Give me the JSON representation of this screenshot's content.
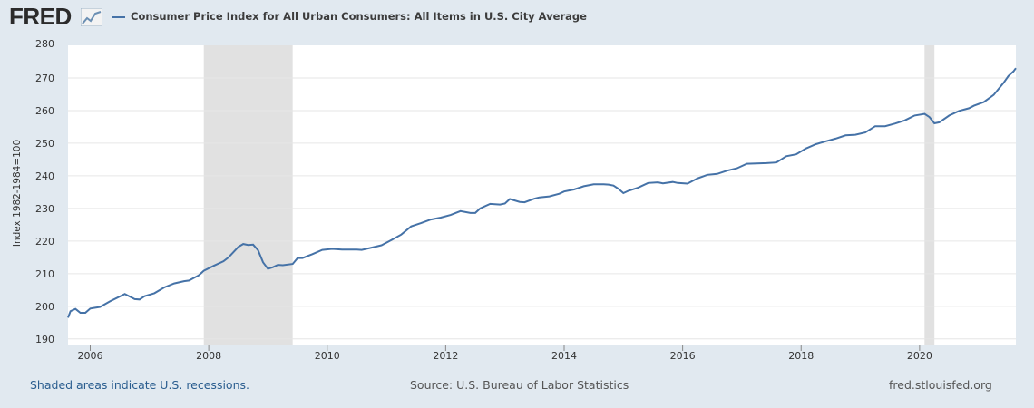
{
  "header": {
    "logo_text": "FRED",
    "series_label": "Consumer Price Index for All Urban Consumers: All Items in U.S. City Average"
  },
  "footer": {
    "recession_note": "Shaded areas indicate U.S. recessions.",
    "source": "Source: U.S. Bureau of Labor Statistics",
    "site": "fred.stlouisfed.org"
  },
  "colors": {
    "background": "#e1e9f0",
    "plot_bg": "#ffffff",
    "line": "#4572a7",
    "recession": "#e1e1e1",
    "grid": "#e6e6e6"
  },
  "chart_data": {
    "type": "line",
    "title": "Consumer Price Index for All Urban Consumers: All Items in U.S. City Average",
    "xlabel": "",
    "ylabel": "Index 1982-1984=100",
    "xlim": [
      2005.625,
      2021.625
    ],
    "ylim": [
      188,
      280
    ],
    "y_ticks": [
      190,
      200,
      210,
      220,
      230,
      240,
      250,
      260,
      270,
      280
    ],
    "x_ticks": [
      2006,
      2008,
      2010,
      2012,
      2014,
      2016,
      2018,
      2020
    ],
    "grid": true,
    "recessions": [
      [
        2007.917,
        2009.417
      ],
      [
        2020.083,
        2020.25
      ]
    ],
    "series": [
      {
        "name": "CPIAUCSL",
        "points": [
          [
            2005.625,
            196.5
          ],
          [
            2005.667,
            198.5
          ],
          [
            2005.75,
            199.2
          ],
          [
            2005.833,
            198.0
          ],
          [
            2005.917,
            198.0
          ],
          [
            2006.0,
            199.3
          ],
          [
            2006.167,
            199.8
          ],
          [
            2006.333,
            201.5
          ],
          [
            2006.5,
            203.0
          ],
          [
            2006.583,
            203.8
          ],
          [
            2006.75,
            202.2
          ],
          [
            2006.833,
            202.1
          ],
          [
            2006.917,
            203.1
          ],
          [
            2007.083,
            204.0
          ],
          [
            2007.25,
            205.8
          ],
          [
            2007.417,
            207.0
          ],
          [
            2007.583,
            207.7
          ],
          [
            2007.667,
            207.9
          ],
          [
            2007.833,
            209.5
          ],
          [
            2007.917,
            210.9
          ],
          [
            2008.083,
            212.4
          ],
          [
            2008.25,
            213.8
          ],
          [
            2008.333,
            215.0
          ],
          [
            2008.5,
            218.2
          ],
          [
            2008.583,
            219.1
          ],
          [
            2008.667,
            218.8
          ],
          [
            2008.75,
            218.9
          ],
          [
            2008.833,
            217.2
          ],
          [
            2008.917,
            213.5
          ],
          [
            2009.0,
            211.5
          ],
          [
            2009.083,
            212.0
          ],
          [
            2009.167,
            212.7
          ],
          [
            2009.25,
            212.6
          ],
          [
            2009.417,
            213.0
          ],
          [
            2009.5,
            214.8
          ],
          [
            2009.583,
            214.8
          ],
          [
            2009.75,
            216.0
          ],
          [
            2009.917,
            217.3
          ],
          [
            2010.083,
            217.6
          ],
          [
            2010.25,
            217.4
          ],
          [
            2010.5,
            217.4
          ],
          [
            2010.583,
            217.3
          ],
          [
            2010.75,
            218.0
          ],
          [
            2010.917,
            218.7
          ],
          [
            2011.083,
            220.3
          ],
          [
            2011.25,
            222.0
          ],
          [
            2011.417,
            224.5
          ],
          [
            2011.583,
            225.5
          ],
          [
            2011.75,
            226.6
          ],
          [
            2011.917,
            227.2
          ],
          [
            2012.083,
            228.0
          ],
          [
            2012.25,
            229.2
          ],
          [
            2012.417,
            228.6
          ],
          [
            2012.5,
            228.6
          ],
          [
            2012.583,
            230.0
          ],
          [
            2012.75,
            231.4
          ],
          [
            2012.917,
            231.2
          ],
          [
            2013.0,
            231.5
          ],
          [
            2013.083,
            232.9
          ],
          [
            2013.25,
            232.0
          ],
          [
            2013.333,
            231.9
          ],
          [
            2013.5,
            233.0
          ],
          [
            2013.583,
            233.4
          ],
          [
            2013.75,
            233.7
          ],
          [
            2013.917,
            234.5
          ],
          [
            2014.0,
            235.2
          ],
          [
            2014.167,
            235.8
          ],
          [
            2014.333,
            236.8
          ],
          [
            2014.5,
            237.4
          ],
          [
            2014.667,
            237.4
          ],
          [
            2014.75,
            237.3
          ],
          [
            2014.833,
            237.0
          ],
          [
            2014.917,
            236.0
          ],
          [
            2015.0,
            234.7
          ],
          [
            2015.083,
            235.4
          ],
          [
            2015.25,
            236.4
          ],
          [
            2015.417,
            237.8
          ],
          [
            2015.583,
            238.0
          ],
          [
            2015.667,
            237.7
          ],
          [
            2015.833,
            238.1
          ],
          [
            2015.917,
            237.8
          ],
          [
            2016.083,
            237.6
          ],
          [
            2016.25,
            239.2
          ],
          [
            2016.417,
            240.3
          ],
          [
            2016.583,
            240.6
          ],
          [
            2016.75,
            241.6
          ],
          [
            2016.917,
            242.3
          ],
          [
            2017.083,
            243.7
          ],
          [
            2017.25,
            243.8
          ],
          [
            2017.417,
            243.9
          ],
          [
            2017.583,
            244.1
          ],
          [
            2017.75,
            246.0
          ],
          [
            2017.917,
            246.6
          ],
          [
            2018.083,
            248.4
          ],
          [
            2018.25,
            249.7
          ],
          [
            2018.417,
            250.6
          ],
          [
            2018.583,
            251.4
          ],
          [
            2018.75,
            252.4
          ],
          [
            2018.917,
            252.6
          ],
          [
            2019.083,
            253.3
          ],
          [
            2019.25,
            255.2
          ],
          [
            2019.417,
            255.2
          ],
          [
            2019.583,
            256.0
          ],
          [
            2019.75,
            257.0
          ],
          [
            2019.917,
            258.5
          ],
          [
            2020.083,
            259.0
          ],
          [
            2020.167,
            258.0
          ],
          [
            2020.25,
            256.1
          ],
          [
            2020.333,
            256.4
          ],
          [
            2020.5,
            258.5
          ],
          [
            2020.667,
            259.9
          ],
          [
            2020.833,
            260.7
          ],
          [
            2020.917,
            261.5
          ],
          [
            2021.083,
            262.6
          ],
          [
            2021.25,
            264.8
          ],
          [
            2021.417,
            268.5
          ],
          [
            2021.5,
            270.6
          ],
          [
            2021.583,
            272.0
          ],
          [
            2021.625,
            273.0
          ]
        ]
      }
    ]
  }
}
